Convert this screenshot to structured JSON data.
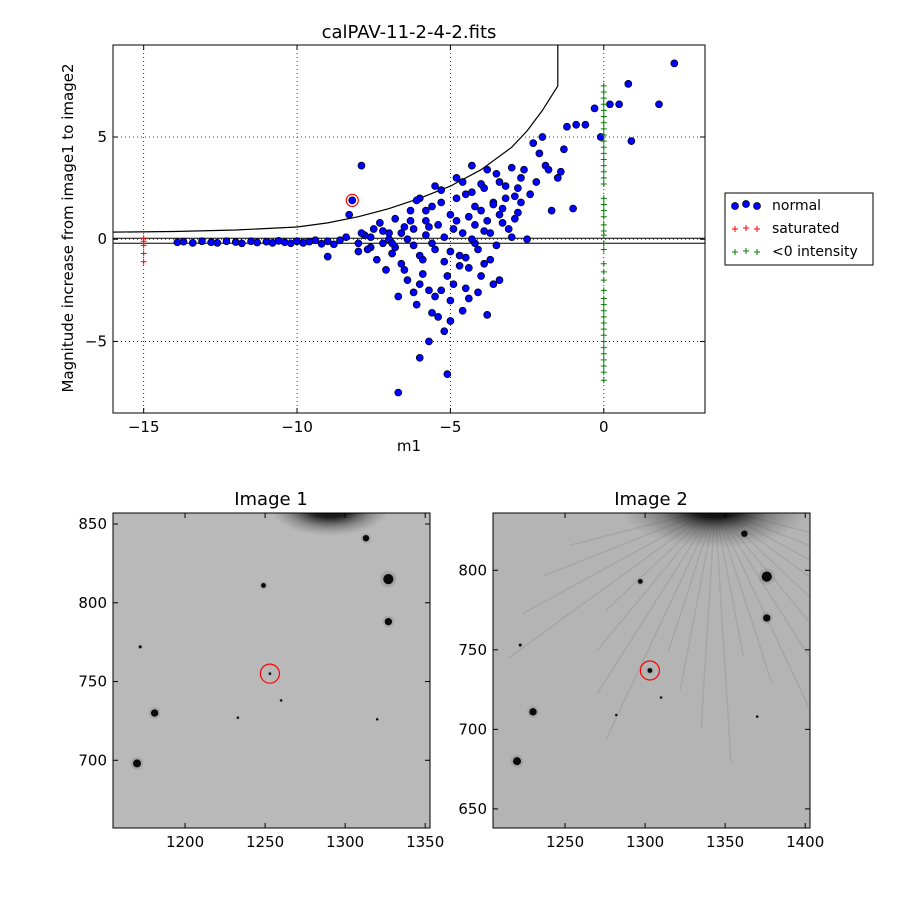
{
  "chart_data": [
    {
      "type": "scatter",
      "title": "calPAV-11-2-4-2.fits",
      "xlabel": "m1",
      "ylabel": "Magnitude increase from image1 to image2",
      "xlim": [
        -16,
        3.3
      ],
      "ylim": [
        -8.5,
        9.5
      ],
      "xticks": [
        -15,
        -10,
        -5,
        0
      ],
      "xtick_labels": [
        "−15",
        "−10",
        "−5",
        "0"
      ],
      "yticks": [
        -5,
        0,
        5
      ],
      "ytick_labels": [
        "−5",
        "0",
        "5"
      ],
      "grid": true,
      "legend_placement": "outside-right",
      "reference_lines": {
        "horizontal": [
          -0.2,
          0.05
        ]
      },
      "threshold_curve": {
        "x": [
          -16,
          -14,
          -12,
          -10,
          -9,
          -8,
          -7,
          -6,
          -5,
          -4,
          -3,
          -2.5,
          -2,
          -1.5,
          -1.5
        ],
        "y": [
          0.35,
          0.38,
          0.45,
          0.6,
          0.8,
          1.1,
          1.5,
          2.0,
          2.6,
          3.4,
          4.5,
          5.3,
          6.3,
          7.5,
          9.5
        ]
      },
      "highlight_point": {
        "x": -8.2,
        "y": 1.9
      },
      "series": [
        {
          "name": "normal",
          "marker": "circle",
          "color": "#0000ff",
          "points": [
            [
              -13.9,
              -0.15
            ],
            [
              -13.7,
              -0.12
            ],
            [
              -13.4,
              -0.18
            ],
            [
              -13.1,
              -0.1
            ],
            [
              -12.8,
              -0.15
            ],
            [
              -12.6,
              -0.18
            ],
            [
              -12.3,
              -0.1
            ],
            [
              -12.0,
              -0.14
            ],
            [
              -11.8,
              -0.2
            ],
            [
              -11.5,
              -0.1
            ],
            [
              -11.3,
              -0.16
            ],
            [
              -11.0,
              -0.12
            ],
            [
              -10.8,
              -0.18
            ],
            [
              -10.6,
              -0.08
            ],
            [
              -10.4,
              -0.15
            ],
            [
              -10.2,
              -0.2
            ],
            [
              -10.0,
              -0.1
            ],
            [
              -9.8,
              -0.18
            ],
            [
              -9.6,
              -0.12
            ],
            [
              -9.4,
              -0.05
            ],
            [
              -9.2,
              -0.22
            ],
            [
              -9.0,
              -0.1
            ],
            [
              -8.8,
              -0.25
            ],
            [
              -8.6,
              -0.05
            ],
            [
              -8.4,
              0.1
            ],
            [
              -8.3,
              1.2
            ],
            [
              -8.2,
              1.9
            ],
            [
              -7.9,
              3.6
            ],
            [
              -9.0,
              -0.85
            ],
            [
              -8.0,
              -0.6
            ],
            [
              -7.8,
              0.2
            ],
            [
              -7.6,
              -0.4
            ],
            [
              -7.5,
              0.5
            ],
            [
              -7.4,
              -1.0
            ],
            [
              -7.3,
              0.8
            ],
            [
              -7.2,
              -0.2
            ],
            [
              -7.1,
              -1.5
            ],
            [
              -7.0,
              0.3
            ],
            [
              -6.9,
              -0.7
            ],
            [
              -6.8,
              1.0
            ],
            [
              -6.7,
              -2.8
            ],
            [
              -6.7,
              -7.5
            ],
            [
              -6.6,
              -1.2
            ],
            [
              -6.5,
              0.6
            ],
            [
              -6.4,
              -2.0
            ],
            [
              -6.3,
              1.4
            ],
            [
              -6.2,
              -0.3
            ],
            [
              -6.1,
              -3.2
            ],
            [
              -6.0,
              2.0
            ],
            [
              -6.0,
              -5.8
            ],
            [
              -5.9,
              -1.7
            ],
            [
              -5.8,
              0.9
            ],
            [
              -5.7,
              -2.5
            ],
            [
              -5.7,
              -5.0
            ],
            [
              -5.6,
              1.6
            ],
            [
              -5.5,
              -0.5
            ],
            [
              -5.4,
              -3.8
            ],
            [
              -5.3,
              2.4
            ],
            [
              -5.2,
              -1.1
            ],
            [
              -5.2,
              -4.5
            ],
            [
              -5.1,
              -6.6
            ],
            [
              -5.0,
              1.2
            ],
            [
              -4.9,
              -2.2
            ],
            [
              -4.8,
              3.0
            ],
            [
              -4.7,
              -0.8
            ],
            [
              -4.6,
              -3.5
            ],
            [
              -4.5,
              2.2
            ],
            [
              -4.4,
              -1.4
            ],
            [
              -4.3,
              3.6
            ],
            [
              -4.2,
              -0.2
            ],
            [
              -4.1,
              -2.6
            ],
            [
              -4.0,
              2.7
            ],
            [
              -3.9,
              0.4
            ],
            [
              -3.8,
              3.4
            ],
            [
              -3.8,
              -3.7
            ],
            [
              -3.7,
              -1.0
            ],
            [
              -3.6,
              1.8
            ],
            [
              -3.5,
              3.2
            ],
            [
              -3.4,
              -2.0
            ],
            [
              -3.3,
              1.5
            ],
            [
              -3.2,
              2.6
            ],
            [
              -3.1,
              0.5
            ],
            [
              -3.0,
              3.5
            ],
            [
              -2.9,
              2.1
            ],
            [
              -2.8,
              1.3
            ],
            [
              -2.7,
              3.0
            ],
            [
              -2.6,
              3.4
            ],
            [
              -2.5,
              0.0
            ],
            [
              -2.4,
              2.2
            ],
            [
              -2.3,
              4.7
            ],
            [
              -2.2,
              2.8
            ],
            [
              -2.1,
              4.2
            ],
            [
              -2.0,
              5.0
            ],
            [
              -1.9,
              3.6
            ],
            [
              -1.8,
              3.4
            ],
            [
              -1.7,
              1.4
            ],
            [
              -1.5,
              3.0
            ],
            [
              -1.4,
              3.3
            ],
            [
              -1.3,
              4.4
            ],
            [
              -1.2,
              5.5
            ],
            [
              -1.0,
              1.5
            ],
            [
              -0.9,
              5.6
            ],
            [
              -0.6,
              5.6
            ],
            [
              -0.3,
              6.4
            ],
            [
              -0.1,
              5.0
            ],
            [
              0.2,
              6.6
            ],
            [
              0.5,
              6.6
            ],
            [
              0.8,
              7.6
            ],
            [
              0.9,
              4.8
            ],
            [
              1.8,
              6.6
            ],
            [
              2.3,
              8.6
            ],
            [
              -7.0,
              0.0
            ],
            [
              -6.8,
              -0.4
            ],
            [
              -6.6,
              0.3
            ],
            [
              -6.4,
              0.0
            ],
            [
              -6.2,
              0.5
            ],
            [
              -6.0,
              -0.8
            ],
            [
              -5.8,
              0.2
            ],
            [
              -5.6,
              -0.2
            ],
            [
              -5.4,
              0.7
            ],
            [
              -5.2,
              0.1
            ],
            [
              -5.0,
              -0.6
            ],
            [
              -4.8,
              0.9
            ],
            [
              -4.6,
              0.3
            ],
            [
              -4.4,
              1.1
            ],
            [
              -4.2,
              0.7
            ],
            [
              -4.0,
              1.4
            ],
            [
              -3.8,
              0.9
            ],
            [
              -3.6,
              1.7
            ],
            [
              -3.4,
              1.2
            ],
            [
              -3.2,
              2.0
            ],
            [
              -6.5,
              -1.5
            ],
            [
              -6.0,
              -2.2
            ],
            [
              -5.5,
              -2.8
            ],
            [
              -5.0,
              -3.0
            ],
            [
              -4.5,
              -2.4
            ],
            [
              -4.0,
              -1.8
            ],
            [
              -5.8,
              1.4
            ],
            [
              -5.3,
              1.8
            ],
            [
              -4.8,
              2.0
            ],
            [
              -4.3,
              2.3
            ],
            [
              -3.9,
              2.5
            ],
            [
              -6.3,
              0.9
            ],
            [
              -5.9,
              -1.0
            ],
            [
              -5.1,
              -1.8
            ],
            [
              -4.7,
              -1.3
            ],
            [
              -4.3,
              0.0
            ],
            [
              -3.7,
              0.3
            ],
            [
              -3.3,
              0.8
            ],
            [
              -7.6,
              0.1
            ],
            [
              -7.2,
              0.4
            ],
            [
              -6.9,
              -0.2
            ],
            [
              -5.7,
              0.6
            ],
            [
              -4.9,
              0.5
            ],
            [
              -4.1,
              -0.5
            ],
            [
              -3.5,
              -0.3
            ],
            [
              -2.9,
              1.0
            ],
            [
              -5.6,
              -3.6
            ],
            [
              -5.0,
              -4.0
            ],
            [
              -6.2,
              -2.6
            ],
            [
              -4.4,
              -2.9
            ],
            [
              -3.6,
              -2.2
            ],
            [
              -5.5,
              2.6
            ],
            [
              -4.6,
              2.8
            ],
            [
              -3.4,
              2.8
            ],
            [
              -2.8,
              2.5
            ],
            [
              -8.0,
              -0.2
            ],
            [
              -7.7,
              -0.5
            ],
            [
              -7.9,
              0.3
            ],
            [
              -6.1,
              1.9
            ],
            [
              -5.3,
              -2.5
            ],
            [
              -4.5,
              -0.9
            ],
            [
              -3.0,
              0.1
            ],
            [
              -2.7,
              1.8
            ],
            [
              -4.2,
              1.6
            ],
            [
              -3.9,
              -1.2
            ]
          ]
        },
        {
          "name": "saturated",
          "marker": "plus",
          "color": "#ff0000",
          "points": [
            [
              -15,
              0.05
            ],
            [
              -15,
              -0.1
            ],
            [
              -15,
              -0.3
            ],
            [
              -15,
              -0.7
            ],
            [
              -15,
              -1.1
            ]
          ]
        },
        {
          "name": "<0 intensity",
          "marker": "plus",
          "color": "#008000",
          "points": [
            [
              0,
              7.5
            ],
            [
              0,
              7.2
            ],
            [
              0,
              6.9
            ],
            [
              0,
              6.6
            ],
            [
              0,
              6.3
            ],
            [
              0,
              6.0
            ],
            [
              0,
              5.7
            ],
            [
              0,
              5.4
            ],
            [
              0,
              5.1
            ],
            [
              0,
              4.8
            ],
            [
              0,
              4.5
            ],
            [
              0,
              4.2
            ],
            [
              0,
              3.9
            ],
            [
              0,
              3.6
            ],
            [
              0,
              3.3
            ],
            [
              0,
              3.0
            ],
            [
              0,
              2.7
            ],
            [
              0,
              2.0
            ],
            [
              0,
              1.7
            ],
            [
              0,
              1.4
            ],
            [
              0,
              1.1
            ],
            [
              0,
              0.7
            ],
            [
              0,
              0.4
            ],
            [
              0,
              0.2
            ],
            [
              0,
              -0.2
            ],
            [
              0,
              -0.5
            ],
            [
              0,
              -1.2
            ],
            [
              0,
              -1.6
            ],
            [
              0,
              -2.0
            ],
            [
              0,
              -2.5
            ],
            [
              0,
              -2.9
            ],
            [
              0,
              -3.2
            ],
            [
              0,
              -3.5
            ],
            [
              0,
              -3.8
            ],
            [
              0,
              -4.1
            ],
            [
              0,
              -4.4
            ],
            [
              0,
              -4.7
            ],
            [
              0,
              -5.0
            ],
            [
              0,
              -5.3
            ],
            [
              0,
              -5.6
            ],
            [
              0,
              -5.9
            ],
            [
              0,
              -6.2
            ],
            [
              0,
              -6.5
            ],
            [
              0,
              -6.9
            ]
          ]
        }
      ]
    },
    {
      "type": "image",
      "title": "Image 1",
      "xlim": [
        1155,
        1353
      ],
      "ylim": [
        657,
        857
      ],
      "xticks": [
        1200,
        1250,
        1300,
        1350
      ],
      "xtick_labels": [
        "1200",
        "1250",
        "1300",
        "1350"
      ],
      "yticks": [
        700,
        750,
        800,
        850
      ],
      "ytick_labels": [
        "700",
        "750",
        "800",
        "850"
      ],
      "target": {
        "x": 1253,
        "y": 755
      },
      "sources": [
        {
          "x": 1170,
          "y": 698,
          "r": 2.5
        },
        {
          "x": 1181,
          "y": 730,
          "r": 2.3
        },
        {
          "x": 1249,
          "y": 811,
          "r": 1.5
        },
        {
          "x": 1313,
          "y": 841,
          "r": 2
        },
        {
          "x": 1327,
          "y": 815,
          "r": 3.2
        },
        {
          "x": 1327,
          "y": 788,
          "r": 2.3
        },
        {
          "x": 1172,
          "y": 772,
          "r": 0.9
        },
        {
          "x": 1253,
          "y": 755,
          "r": 0.8
        },
        {
          "x": 1233,
          "y": 727,
          "r": 0.7
        },
        {
          "x": 1260,
          "y": 738,
          "r": 0.7
        },
        {
          "x": 1320,
          "y": 726,
          "r": 0.7
        }
      ]
    },
    {
      "type": "image",
      "title": "Image 2",
      "xlim": [
        1205,
        1403
      ],
      "ylim": [
        638,
        836
      ],
      "xticks": [
        1250,
        1300,
        1350,
        1400
      ],
      "xtick_labels": [
        "1250",
        "1300",
        "1350",
        "1400"
      ],
      "yticks": [
        650,
        700,
        750,
        800
      ],
      "ytick_labels": [
        "650",
        "700",
        "750",
        "800"
      ],
      "target": {
        "x": 1303,
        "y": 737
      },
      "sources": [
        {
          "x": 1220,
          "y": 680,
          "r": 2.5
        },
        {
          "x": 1230,
          "y": 711,
          "r": 2.3
        },
        {
          "x": 1297,
          "y": 793,
          "r": 1.5
        },
        {
          "x": 1362,
          "y": 823,
          "r": 2
        },
        {
          "x": 1376,
          "y": 796,
          "r": 3.2
        },
        {
          "x": 1376,
          "y": 770,
          "r": 2.3
        },
        {
          "x": 1222,
          "y": 753,
          "r": 0.9
        },
        {
          "x": 1303,
          "y": 737,
          "r": 1.5
        },
        {
          "x": 1282,
          "y": 709,
          "r": 0.7
        },
        {
          "x": 1310,
          "y": 720,
          "r": 0.7
        },
        {
          "x": 1370,
          "y": 708,
          "r": 0.7
        }
      ]
    }
  ]
}
